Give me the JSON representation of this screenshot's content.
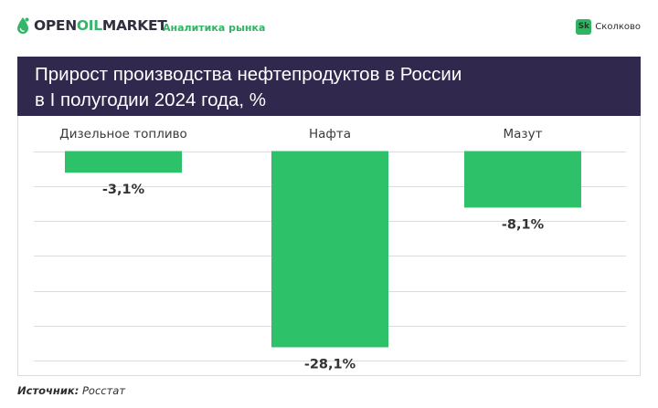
{
  "brand": {
    "logo_prefix": "OPEN",
    "logo_accent": "OIL",
    "logo_suffix": "MARKET",
    "tagline": "Аналитика рынка",
    "partner_badge": "Sk",
    "partner_name": "Сколково"
  },
  "title": {
    "line1": "Прирост производства нефтепродуктов в России",
    "line2": "в I полугодии 2024 года, %"
  },
  "source": {
    "label": "Источник:",
    "value": "Росстат"
  },
  "colors": {
    "bar": "#2dc16a",
    "title_bg": "#30284d",
    "accent": "#2fb463",
    "grid": "#dcdcdc",
    "text": "#333333"
  },
  "chart_data": {
    "type": "bar",
    "categories": [
      "Дизельное топливо",
      "Нафта",
      "Мазут"
    ],
    "values": [
      -3.1,
      -28.1,
      -8.1
    ],
    "value_labels": [
      "-3,1%",
      "-28,1%",
      "-8,1%"
    ],
    "title": "Прирост производства нефтепродуктов в России в I полугодии 2024 года, %",
    "ylim": [
      -30,
      0
    ],
    "grid": true,
    "category_labels_position": "top",
    "data_labels_position": "below-bar"
  }
}
